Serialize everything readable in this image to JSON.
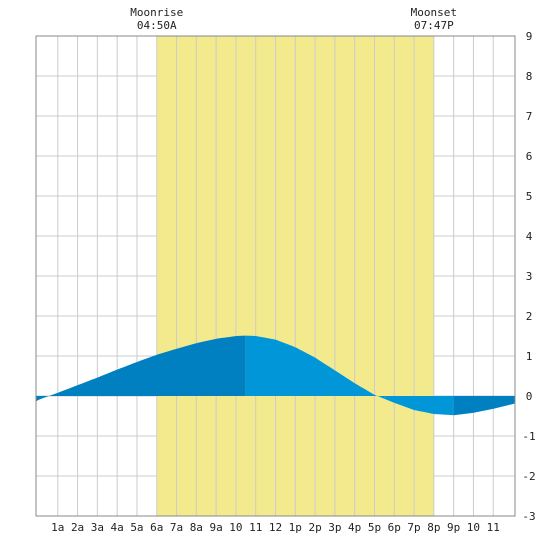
{
  "chart_data": {
    "type": "area",
    "title": "",
    "xlabel": "",
    "ylabel": "",
    "xlim": [
      -0.1,
      24.1
    ],
    "ylim": [
      -3,
      9
    ],
    "x_ticks": [
      1,
      2,
      3,
      4,
      5,
      6,
      7,
      8,
      9,
      10,
      11,
      12,
      13,
      14,
      15,
      16,
      17,
      18,
      19,
      20,
      21,
      22,
      23
    ],
    "x_tick_labels": [
      "1a",
      "2a",
      "3a",
      "4a",
      "5a",
      "6a",
      "7a",
      "8a",
      "9a",
      "10",
      "11",
      "12",
      "1p",
      "2p",
      "3p",
      "4p",
      "5p",
      "6p",
      "7p",
      "8p",
      "9p",
      "10",
      "11"
    ],
    "y_ticks": [
      -3,
      -2,
      -1,
      0,
      1,
      2,
      3,
      4,
      5,
      6,
      7,
      8,
      9
    ],
    "y_tick_labels": [
      "-3",
      "-2",
      "-1",
      "0",
      "1",
      "2",
      "3",
      "4",
      "5",
      "6",
      "7",
      "8",
      "9"
    ],
    "grid": true,
    "moon": {
      "rise_x": 6.0,
      "set_x": 20.0,
      "moonrise_label": "Moonrise",
      "moonrise_time": "04:50A",
      "moonset_label": "Moonset",
      "moonset_time": "07:47P",
      "band_color": "#f2ea8c"
    },
    "series": [
      {
        "x": [
          -0.1,
          0,
          1,
          2,
          3,
          4,
          5,
          6,
          7,
          8,
          9,
          10,
          10.5,
          11,
          12,
          13,
          14,
          15,
          16,
          17,
          17.5,
          18,
          19,
          20,
          21,
          22,
          23,
          24,
          24.1
        ],
        "values": [
          -0.13,
          -0.1,
          0.08,
          0.27,
          0.46,
          0.66,
          0.85,
          1.03,
          1.18,
          1.32,
          1.43,
          1.5,
          1.51,
          1.5,
          1.41,
          1.22,
          0.96,
          0.64,
          0.32,
          0.03,
          -0.07,
          -0.17,
          -0.35,
          -0.45,
          -0.48,
          -0.42,
          -0.32,
          -0.2,
          -0.19
        ]
      }
    ],
    "colors": {
      "falling": "#0080c0",
      "rising": "#0096d8",
      "grid": "#cccccc",
      "frame": "#888888"
    },
    "color_breaks_x": [
      10.5,
      17.5,
      21.0
    ]
  }
}
